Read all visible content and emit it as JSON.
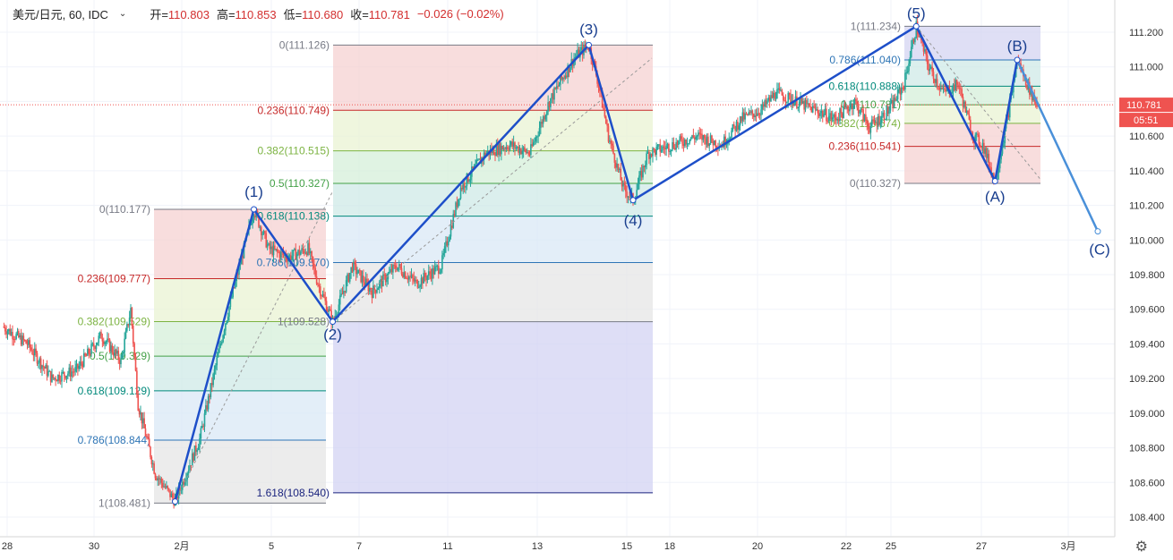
{
  "header": {
    "symbol": "美元/日元, 60, IDC",
    "open_label": "开=",
    "open": "110.803",
    "high_label": "高=",
    "high": "110.853",
    "low_label": "低=",
    "low": "110.680",
    "close_label": "收=",
    "close": "110.781",
    "change": "−0.026 (−0.02%)"
  },
  "price_axis": {
    "ticks": [
      "111.200",
      "111.000",
      "110.800",
      "110.600",
      "110.400",
      "110.200",
      "110.000",
      "109.800",
      "109.600",
      "109.400",
      "109.200",
      "109.000",
      "108.800",
      "108.600",
      "108.400"
    ],
    "last_price": "110.781",
    "countdown": "05:51",
    "last_price_color": "#ef5350"
  },
  "time_axis": {
    "ticks": [
      "28",
      "30",
      "2月",
      "5",
      "7",
      "11",
      "13",
      "15",
      "18",
      "20",
      "22",
      "25",
      "27",
      "3月"
    ]
  },
  "colors": {
    "bull": "#26a69a",
    "bear": "#ef5350",
    "wave": "#1e4fc9",
    "projection": "#4a90d9"
  },
  "chart_data": {
    "type": "candlestick",
    "title": "美元/日元, 60, IDC",
    "ylim": [
      108.35,
      111.35
    ],
    "price_path": [
      {
        "t": 0,
        "p": 109.5
      },
      {
        "t": 10,
        "p": 109.4
      },
      {
        "t": 20,
        "p": 109.2
      },
      {
        "t": 30,
        "p": 109.25
      },
      {
        "t": 40,
        "p": 109.45
      },
      {
        "t": 48,
        "p": 109.3
      },
      {
        "t": 52,
        "p": 109.6
      },
      {
        "t": 55,
        "p": 109.05
      },
      {
        "t": 62,
        "p": 108.65
      },
      {
        "t": 70,
        "p": 108.49
      },
      {
        "t": 80,
        "p": 108.85
      },
      {
        "t": 90,
        "p": 109.5
      },
      {
        "t": 102,
        "p": 110.177
      },
      {
        "t": 108,
        "p": 109.95
      },
      {
        "t": 116,
        "p": 109.9
      },
      {
        "t": 124,
        "p": 109.95
      },
      {
        "t": 128,
        "p": 109.75
      },
      {
        "t": 134,
        "p": 109.528
      },
      {
        "t": 142,
        "p": 109.85
      },
      {
        "t": 150,
        "p": 109.7
      },
      {
        "t": 160,
        "p": 109.85
      },
      {
        "t": 168,
        "p": 109.75
      },
      {
        "t": 178,
        "p": 109.85
      },
      {
        "t": 186,
        "p": 110.3
      },
      {
        "t": 196,
        "p": 110.5
      },
      {
        "t": 206,
        "p": 110.55
      },
      {
        "t": 214,
        "p": 110.5
      },
      {
        "t": 222,
        "p": 110.8
      },
      {
        "t": 232,
        "p": 111.05
      },
      {
        "t": 238,
        "p": 111.126
      },
      {
        "t": 242,
        "p": 110.9
      },
      {
        "t": 246,
        "p": 110.6
      },
      {
        "t": 252,
        "p": 110.3
      },
      {
        "t": 256,
        "p": 110.23
      },
      {
        "t": 262,
        "p": 110.5
      },
      {
        "t": 272,
        "p": 110.55
      },
      {
        "t": 282,
        "p": 110.6
      },
      {
        "t": 292,
        "p": 110.55
      },
      {
        "t": 300,
        "p": 110.7
      },
      {
        "t": 308,
        "p": 110.75
      },
      {
        "t": 314,
        "p": 110.85
      },
      {
        "t": 322,
        "p": 110.8
      },
      {
        "t": 330,
        "p": 110.75
      },
      {
        "t": 338,
        "p": 110.7
      },
      {
        "t": 346,
        "p": 110.8
      },
      {
        "t": 352,
        "p": 110.65
      },
      {
        "t": 360,
        "p": 110.75
      },
      {
        "t": 366,
        "p": 110.9
      },
      {
        "t": 371,
        "p": 111.234
      },
      {
        "t": 376,
        "p": 111.0
      },
      {
        "t": 382,
        "p": 110.85
      },
      {
        "t": 388,
        "p": 110.9
      },
      {
        "t": 394,
        "p": 110.6
      },
      {
        "t": 398,
        "p": 110.55
      },
      {
        "t": 403,
        "p": 110.34
      },
      {
        "t": 408,
        "p": 110.7
      },
      {
        "t": 412,
        "p": 111.04
      },
      {
        "t": 416,
        "p": 110.9
      },
      {
        "t": 420,
        "p": 110.78
      }
    ],
    "elliott_waves": [
      {
        "label": "(1)",
        "t": 102,
        "p": 110.177
      },
      {
        "label": "(2)",
        "t": 134,
        "p": 109.528
      },
      {
        "label": "(3)",
        "t": 238,
        "p": 111.126
      },
      {
        "label": "(4)",
        "t": 256,
        "p": 110.23
      },
      {
        "label": "(5)",
        "t": 371,
        "p": 111.234
      },
      {
        "label": "(A)",
        "t": 403,
        "p": 110.34
      },
      {
        "label": "(B)",
        "t": 412,
        "p": 111.04
      }
    ],
    "wave_start": {
      "t": 70,
      "p": 108.49
    },
    "projection": {
      "label": "(C)",
      "t": 440,
      "p": 110.05
    },
    "fib_sets": [
      {
        "levels": [
          {
            "text": "0(110.177)",
            "p": 110.177,
            "color": "#787b86"
          },
          {
            "text": "0.236(109.777)",
            "p": 109.777,
            "color": "#c62828"
          },
          {
            "text": "0.382(109.529)",
            "p": 109.529,
            "color": "#7cb342"
          },
          {
            "text": "0.5(109.329)",
            "p": 109.329,
            "color": "#43a047"
          },
          {
            "text": "0.618(109.129)",
            "p": 109.129,
            "color": "#00897b"
          },
          {
            "text": "0.786(108.844)",
            "p": 108.844,
            "color": "#2e75b6"
          },
          {
            "text": "1(108.481)",
            "p": 108.481,
            "color": "#787b86"
          }
        ]
      },
      {
        "levels": [
          {
            "text": "0(111.126)",
            "p": 111.126,
            "color": "#787b86"
          },
          {
            "text": "0.236(110.749)",
            "p": 110.749,
            "color": "#c62828"
          },
          {
            "text": "0.382(110.515)",
            "p": 110.515,
            "color": "#7cb342"
          },
          {
            "text": "0.5(110.327)",
            "p": 110.327,
            "color": "#43a047"
          },
          {
            "text": "0.618(110.138)",
            "p": 110.138,
            "color": "#00897b"
          },
          {
            "text": "0.786(109.870)",
            "p": 109.87,
            "color": "#2e75b6"
          },
          {
            "text": "1(109.528)",
            "p": 109.528,
            "color": "#787b86"
          },
          {
            "text": "1.618(108.540)",
            "p": 108.54,
            "color": "#1a237e"
          }
        ]
      },
      {
        "levels": [
          {
            "text": "1(111.234)",
            "p": 111.234,
            "color": "#787b86"
          },
          {
            "text": "0.786(111.040)",
            "p": 111.04,
            "color": "#2e75b6"
          },
          {
            "text": "0.618(110.888)",
            "p": 110.888,
            "color": "#00897b"
          },
          {
            "text": "0.5(110.781)",
            "p": 110.781,
            "color": "#43a047"
          },
          {
            "text": "0.382(110.674)",
            "p": 110.674,
            "color": "#7cb342"
          },
          {
            "text": "0.236(110.541)",
            "p": 110.541,
            "color": "#c62828"
          },
          {
            "text": "0(110.327)",
            "p": 110.327,
            "color": "#787b86"
          }
        ]
      }
    ]
  }
}
